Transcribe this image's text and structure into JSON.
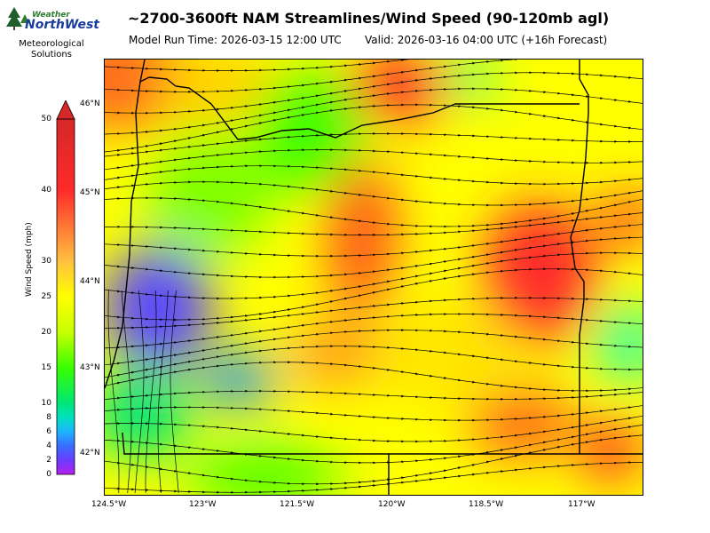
{
  "logo": {
    "weather_text": "Weather",
    "brand_text": "NorthWest",
    "sub_line1": "Meteorological",
    "sub_line2": "Solutions",
    "tree_icon": "evergreen-tree-icon"
  },
  "header": {
    "title": "~2700-3600ft NAM Streamlines/Wind Speed (90-120mb agl)",
    "model_run": "Model Run Time: 2026-03-15 12:00 UTC",
    "valid": "Valid: 2026-03-16 04:00 UTC  (+16h Forecast)"
  },
  "map": {
    "lat_labels": [
      "46°N",
      "45°N",
      "44°N",
      "43°N",
      "42°N"
    ],
    "lon_labels": [
      "124.5°W",
      "123°W",
      "121.5°W",
      "120°W",
      "118.5°W",
      "117°W"
    ],
    "field": "wind speed shaded with black streamlines and direction arrows",
    "boundaries": "state borders and coastline in black"
  },
  "colorbar": {
    "label": "Wind Speed (mph)",
    "ticks": [
      "0",
      "2",
      "4",
      "6",
      "8",
      "10",
      "15",
      "20",
      "25",
      "30",
      "40",
      "50"
    ],
    "colors": [
      "#b51ff0",
      "#5a46ff",
      "#1e90ff",
      "#00c8ff",
      "#00e678",
      "#38ff00",
      "#a8ff00",
      "#ffff00",
      "#ffd200",
      "#ff9f1c",
      "#ff5a1a",
      "#ff2a2a",
      "#d62828"
    ],
    "extend": "max"
  }
}
